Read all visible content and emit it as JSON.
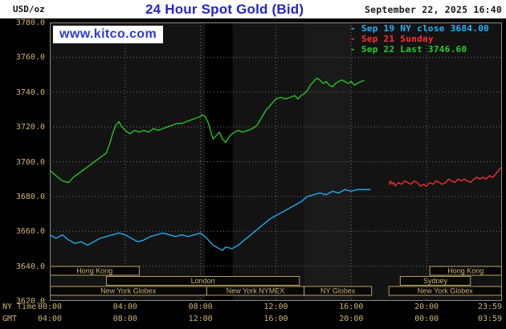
{
  "header": {
    "unit_label": "USD/oz",
    "title": "24 Hour Spot Gold (Bid)",
    "timestamp": "September 22, 2025 16:40"
  },
  "watermark": {
    "text": "www.kitco.com"
  },
  "colors": {
    "background": "#000000",
    "header_bg": "#ffffff",
    "title": "#2426c9",
    "date_text": "#1c1c1c",
    "unit_text": "#111111",
    "watermark_blue": "#2d3bd1",
    "axis_text": "#cdb475",
    "plot_bg": "#131313",
    "grid": "#757575",
    "frame": "#8a8a8a",
    "session_border": "#b6a05c",
    "session_text": "#cdb475",
    "cyan_line": "#1fb4ff",
    "red_line": "#ff3030",
    "green_line": "#24ce24"
  },
  "chart_data": {
    "type": "line",
    "title": "24 Hour Spot Gold (Bid)",
    "unit": "USD/oz",
    "timestamp": "September 22, 2025 16:40",
    "grid": true,
    "legend_position": "top-right",
    "y_axis": {
      "min": 3620,
      "max": 3780,
      "tick_step": 20,
      "tick_labels": [
        "3780.0",
        "3760.0",
        "3740.0",
        "3720.0",
        "3700.0",
        "3680.0",
        "3660.0",
        "3640.0",
        "3620.0"
      ]
    },
    "x_axis": {
      "row1_label": "NY Time",
      "row2_label": "GMT",
      "range_hours": [
        0,
        24
      ],
      "ticks": [
        {
          "h": 0,
          "ny": "00:00",
          "gmt": "04:00"
        },
        {
          "h": 4,
          "ny": "04:00",
          "gmt": "08:00"
        },
        {
          "h": 8,
          "ny": "08:00",
          "gmt": "12:00"
        },
        {
          "h": 12,
          "ny": "12:00",
          "gmt": "16:00"
        },
        {
          "h": 16,
          "ny": "16:00",
          "gmt": "20:00"
        },
        {
          "h": 20,
          "ny": "20:00",
          "gmt": "00:00"
        },
        {
          "h": 23.983,
          "ny": "23:59",
          "gmt": "03:59"
        }
      ]
    },
    "bands": [
      {
        "start": 8.25,
        "end": 9.7,
        "color": "#000000"
      },
      {
        "start": 13.5,
        "end": 16.0,
        "color": "#1a1a1a"
      }
    ],
    "sessions": [
      {
        "row": 0,
        "start": 0,
        "end": 4.75,
        "label": "Hong Kong"
      },
      {
        "row": 0,
        "start": 20.17,
        "end": 23.97,
        "label": "Hong Kong"
      },
      {
        "row": 1,
        "start": 3.0,
        "end": 13.25,
        "label": "London"
      },
      {
        "row": 1,
        "start": 18.6,
        "end": 22.33,
        "label": "Sydney"
      },
      {
        "row": 2,
        "start": 0,
        "end": 8.33,
        "label": "New York Globex"
      },
      {
        "row": 2,
        "start": 8.33,
        "end": 13.5,
        "label": "New York NYMEX"
      },
      {
        "row": 2,
        "start": 13.5,
        "end": 17.08,
        "label": "NY Globex"
      },
      {
        "row": 2,
        "start": 18.0,
        "end": 23.97,
        "label": "New York Globex"
      }
    ],
    "series": [
      {
        "id": "sep19",
        "name": "Sep 19 NY close 3684.00",
        "color": "#1fb4ff",
        "points": [
          [
            0,
            3658
          ],
          [
            0.33,
            3656
          ],
          [
            0.67,
            3658
          ],
          [
            1.0,
            3655
          ],
          [
            1.33,
            3653
          ],
          [
            1.67,
            3654
          ],
          [
            2.0,
            3652
          ],
          [
            2.33,
            3654
          ],
          [
            2.67,
            3656
          ],
          [
            3.0,
            3657
          ],
          [
            3.33,
            3658
          ],
          [
            3.67,
            3659
          ],
          [
            4.0,
            3658
          ],
          [
            4.33,
            3656
          ],
          [
            4.67,
            3654
          ],
          [
            5.0,
            3655
          ],
          [
            5.33,
            3657
          ],
          [
            5.67,
            3658
          ],
          [
            6.0,
            3659
          ],
          [
            6.33,
            3658
          ],
          [
            6.67,
            3657
          ],
          [
            7.0,
            3658
          ],
          [
            7.33,
            3657
          ],
          [
            7.67,
            3658
          ],
          [
            8.0,
            3659
          ],
          [
            8.33,
            3656
          ],
          [
            8.67,
            3652
          ],
          [
            9.0,
            3650
          ],
          [
            9.17,
            3649
          ],
          [
            9.33,
            3651
          ],
          [
            9.67,
            3650
          ],
          [
            10.0,
            3652
          ],
          [
            10.33,
            3655
          ],
          [
            10.67,
            3658
          ],
          [
            11.0,
            3661
          ],
          [
            11.33,
            3664
          ],
          [
            11.67,
            3667
          ],
          [
            12.0,
            3669
          ],
          [
            12.33,
            3671
          ],
          [
            12.67,
            3673
          ],
          [
            13.0,
            3675
          ],
          [
            13.33,
            3677
          ],
          [
            13.67,
            3680
          ],
          [
            14.0,
            3681
          ],
          [
            14.33,
            3682
          ],
          [
            14.67,
            3681
          ],
          [
            15.0,
            3683
          ],
          [
            15.33,
            3682
          ],
          [
            15.67,
            3684
          ],
          [
            16.0,
            3683
          ],
          [
            16.33,
            3684
          ],
          [
            16.67,
            3684
          ],
          [
            17.0,
            3684
          ]
        ]
      },
      {
        "id": "sep21",
        "name": "Sep 21 Sunday",
        "color": "#ff3030",
        "points": [
          [
            18.0,
            3687
          ],
          [
            18.08,
            3689
          ],
          [
            18.17,
            3687
          ],
          [
            18.25,
            3688
          ],
          [
            18.33,
            3686
          ],
          [
            18.5,
            3688
          ],
          [
            18.67,
            3687
          ],
          [
            18.83,
            3689
          ],
          [
            19.0,
            3688
          ],
          [
            19.17,
            3687
          ],
          [
            19.33,
            3689
          ],
          [
            19.5,
            3688
          ],
          [
            19.67,
            3686
          ],
          [
            19.83,
            3687
          ],
          [
            20.0,
            3686
          ],
          [
            20.17,
            3688
          ],
          [
            20.33,
            3687
          ],
          [
            20.5,
            3689
          ],
          [
            20.67,
            3688
          ],
          [
            20.83,
            3687
          ],
          [
            21.0,
            3688
          ],
          [
            21.17,
            3690
          ],
          [
            21.33,
            3689
          ],
          [
            21.5,
            3688
          ],
          [
            21.67,
            3690
          ],
          [
            21.83,
            3689
          ],
          [
            22.0,
            3690
          ],
          [
            22.17,
            3689
          ],
          [
            22.33,
            3688
          ],
          [
            22.5,
            3690
          ],
          [
            22.67,
            3691
          ],
          [
            22.83,
            3690
          ],
          [
            23.0,
            3691
          ],
          [
            23.17,
            3690
          ],
          [
            23.33,
            3692
          ],
          [
            23.5,
            3691
          ],
          [
            23.67,
            3693
          ],
          [
            23.83,
            3695
          ],
          [
            23.98,
            3697
          ]
        ]
      },
      {
        "id": "sep22",
        "name": "Sep 22 Last 3746.60",
        "color": "#24ce24",
        "points": [
          [
            0,
            3695
          ],
          [
            0.33,
            3692
          ],
          [
            0.67,
            3689
          ],
          [
            1.0,
            3688
          ],
          [
            1.25,
            3691
          ],
          [
            1.5,
            3693
          ],
          [
            1.75,
            3695
          ],
          [
            2.0,
            3697
          ],
          [
            2.25,
            3699
          ],
          [
            2.5,
            3701
          ],
          [
            2.75,
            3703
          ],
          [
            3.0,
            3705
          ],
          [
            3.17,
            3710
          ],
          [
            3.33,
            3716
          ],
          [
            3.5,
            3721
          ],
          [
            3.67,
            3723
          ],
          [
            3.83,
            3720
          ],
          [
            4.0,
            3718
          ],
          [
            4.25,
            3716
          ],
          [
            4.5,
            3718
          ],
          [
            4.75,
            3717
          ],
          [
            5.0,
            3718
          ],
          [
            5.25,
            3717
          ],
          [
            5.5,
            3719
          ],
          [
            5.75,
            3718
          ],
          [
            6.0,
            3719
          ],
          [
            6.25,
            3720
          ],
          [
            6.5,
            3721
          ],
          [
            6.75,
            3722
          ],
          [
            7.0,
            3722
          ],
          [
            7.25,
            3723
          ],
          [
            7.5,
            3724
          ],
          [
            7.75,
            3725
          ],
          [
            8.0,
            3726
          ],
          [
            8.08,
            3727
          ],
          [
            8.25,
            3726
          ],
          [
            8.42,
            3722
          ],
          [
            8.58,
            3716
          ],
          [
            8.67,
            3713
          ],
          [
            8.83,
            3715
          ],
          [
            9.0,
            3717
          ],
          [
            9.17,
            3713
          ],
          [
            9.33,
            3711
          ],
          [
            9.5,
            3714
          ],
          [
            9.67,
            3716
          ],
          [
            9.83,
            3717
          ],
          [
            10.0,
            3718
          ],
          [
            10.25,
            3717
          ],
          [
            10.5,
            3718
          ],
          [
            10.75,
            3719
          ],
          [
            11.0,
            3721
          ],
          [
            11.17,
            3724
          ],
          [
            11.33,
            3727
          ],
          [
            11.5,
            3730
          ],
          [
            11.67,
            3732
          ],
          [
            11.83,
            3734
          ],
          [
            12.0,
            3736
          ],
          [
            12.25,
            3737
          ],
          [
            12.5,
            3736
          ],
          [
            12.75,
            3737
          ],
          [
            13.0,
            3738
          ],
          [
            13.17,
            3736
          ],
          [
            13.33,
            3738
          ],
          [
            13.5,
            3739
          ],
          [
            13.67,
            3741
          ],
          [
            13.83,
            3744
          ],
          [
            14.0,
            3746
          ],
          [
            14.17,
            3748
          ],
          [
            14.33,
            3747
          ],
          [
            14.5,
            3745
          ],
          [
            14.67,
            3746
          ],
          [
            14.83,
            3744
          ],
          [
            15.0,
            3743
          ],
          [
            15.17,
            3745
          ],
          [
            15.33,
            3746
          ],
          [
            15.5,
            3747
          ],
          [
            15.67,
            3746
          ],
          [
            15.83,
            3745
          ],
          [
            16.0,
            3746
          ],
          [
            16.17,
            3744
          ],
          [
            16.33,
            3745
          ],
          [
            16.5,
            3746
          ],
          [
            16.67,
            3746.6
          ]
        ]
      }
    ]
  }
}
